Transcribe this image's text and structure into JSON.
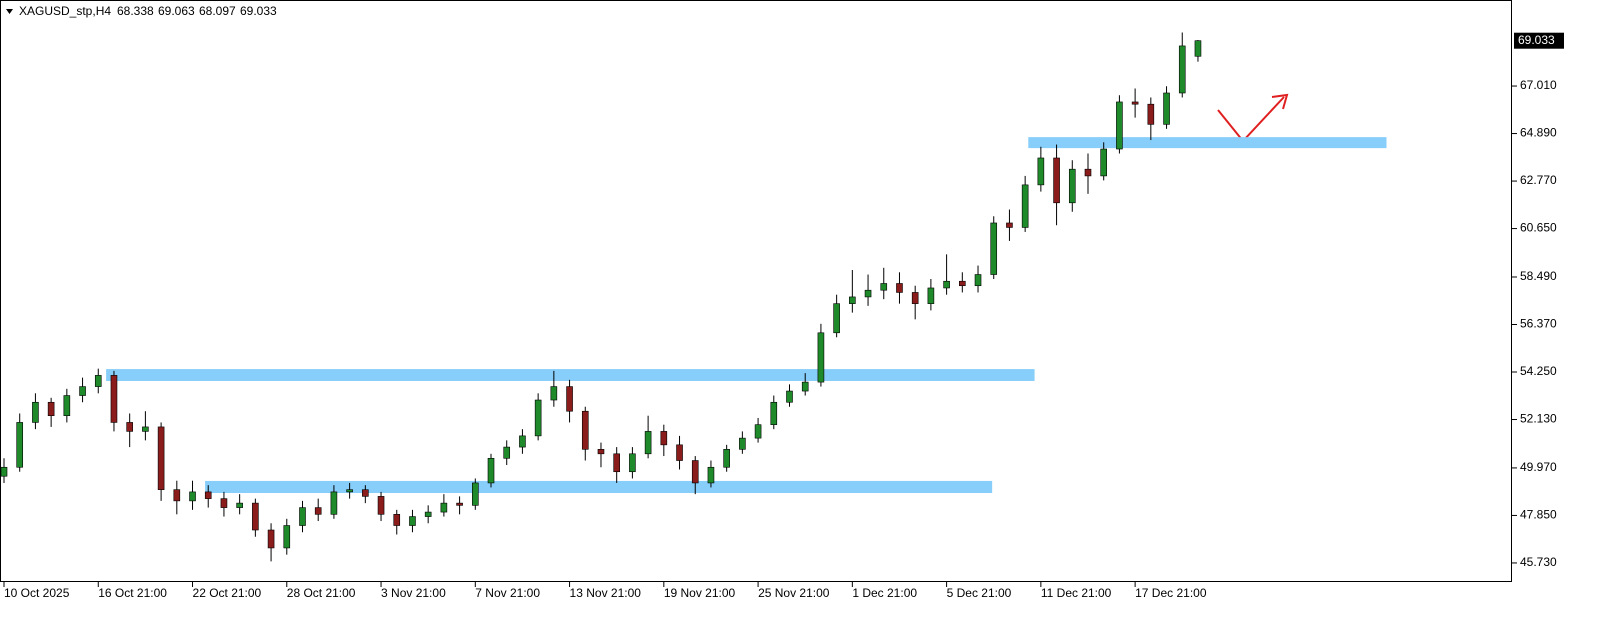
{
  "chart_data": {
    "type": "candlestick",
    "title": "XAGUSD_stp,H4",
    "categories": [
      "10 Oct 2025",
      null,
      null,
      null,
      null,
      null,
      "16 Oct 21:00",
      null,
      null,
      null,
      null,
      null,
      "22 Oct 21:00",
      null,
      null,
      null,
      null,
      null,
      "28 Oct 21:00",
      null,
      null,
      null,
      null,
      null,
      "3 Nov 21:00",
      null,
      null,
      null,
      null,
      null,
      "7 Nov 21:00",
      null,
      null,
      null,
      null,
      null,
      "13 Nov 21:00",
      null,
      null,
      null,
      null,
      null,
      "19 Nov 21:00",
      null,
      null,
      null,
      null,
      null,
      "25 Nov 21:00",
      null,
      null,
      null,
      null,
      null,
      "1 Dec 21:00",
      null,
      null,
      null,
      null,
      null,
      "5 Dec 21:00",
      null,
      null,
      null,
      null,
      null,
      "11 Dec 21:00",
      null,
      null,
      null,
      null,
      null,
      "17 Dec 21:00",
      null,
      null,
      null,
      null
    ],
    "open": [
      49.6,
      50.0,
      52.0,
      52.9,
      52.3,
      53.2,
      53.6,
      54.1,
      52.0,
      51.6,
      51.8,
      49.0,
      48.5,
      48.9,
      48.6,
      48.2,
      48.4,
      47.2,
      46.4,
      47.4,
      48.2,
      47.9,
      48.9,
      49.0,
      48.7,
      47.9,
      47.4,
      47.8,
      48.0,
      48.4,
      48.3,
      49.3,
      50.4,
      50.9,
      51.4,
      53.0,
      53.6,
      52.5,
      50.8,
      50.6,
      49.8,
      50.6,
      51.6,
      51.0,
      50.3,
      49.3,
      50.0,
      50.8,
      51.3,
      51.9,
      52.9,
      53.4,
      53.8,
      56.0,
      57.3,
      57.6,
      57.9,
      58.2,
      57.8,
      57.3,
      58.0,
      58.3,
      58.1,
      58.6,
      60.9,
      60.7,
      62.6,
      63.8,
      61.8,
      63.3,
      63.0,
      64.2,
      66.3,
      66.2,
      65.3,
      66.7,
      68.338
    ],
    "high": [
      50.4,
      52.4,
      53.3,
      53.1,
      53.5,
      54.0,
      54.4,
      54.3,
      52.4,
      52.5,
      52.0,
      49.4,
      49.4,
      49.2,
      48.9,
      48.8,
      48.6,
      47.5,
      47.7,
      48.5,
      48.6,
      49.2,
      49.3,
      49.2,
      48.9,
      48.1,
      48.1,
      48.3,
      48.8,
      48.7,
      49.5,
      50.6,
      51.2,
      51.7,
      53.3,
      54.3,
      53.9,
      52.7,
      51.1,
      50.9,
      50.9,
      52.3,
      51.9,
      51.4,
      50.5,
      50.3,
      51.0,
      51.6,
      52.2,
      53.2,
      53.7,
      54.2,
      56.4,
      57.7,
      58.8,
      58.6,
      58.9,
      58.7,
      58.1,
      58.4,
      59.5,
      58.7,
      59.0,
      61.2,
      61.5,
      63.0,
      64.3,
      64.4,
      63.7,
      64.0,
      64.5,
      66.6,
      66.9,
      66.5,
      67.0,
      69.4,
      69.063
    ],
    "low": [
      49.3,
      49.8,
      51.7,
      51.8,
      52.0,
      52.9,
      53.3,
      51.6,
      50.9,
      51.2,
      48.5,
      47.9,
      48.1,
      48.2,
      47.8,
      47.9,
      46.9,
      45.8,
      46.1,
      47.1,
      47.6,
      47.7,
      48.6,
      48.4,
      47.6,
      47.0,
      47.1,
      47.5,
      47.8,
      47.9,
      48.1,
      49.1,
      50.1,
      50.6,
      51.2,
      52.7,
      52.0,
      50.3,
      50.0,
      49.3,
      49.5,
      50.4,
      50.5,
      49.9,
      48.8,
      49.1,
      49.8,
      50.6,
      51.1,
      51.7,
      52.7,
      53.2,
      53.6,
      55.8,
      56.9,
      57.2,
      57.5,
      57.3,
      56.6,
      57.0,
      57.7,
      57.8,
      57.8,
      58.4,
      60.1,
      60.5,
      62.3,
      60.8,
      61.4,
      62.2,
      62.8,
      64.0,
      65.6,
      64.6,
      65.1,
      66.5,
      68.097
    ],
    "close": [
      50.0,
      52.0,
      52.9,
      52.3,
      53.2,
      53.6,
      54.1,
      52.0,
      51.6,
      51.8,
      49.0,
      48.5,
      48.9,
      48.6,
      48.2,
      48.4,
      47.2,
      46.4,
      47.4,
      48.2,
      47.9,
      48.9,
      49.0,
      48.7,
      47.9,
      47.4,
      47.8,
      48.0,
      48.4,
      48.3,
      49.3,
      50.4,
      50.9,
      51.4,
      53.0,
      53.6,
      52.5,
      50.8,
      50.6,
      49.8,
      50.6,
      51.6,
      51.0,
      50.3,
      49.3,
      50.0,
      50.8,
      51.3,
      51.9,
      52.9,
      53.4,
      53.8,
      56.0,
      57.3,
      57.6,
      57.9,
      58.2,
      57.8,
      57.3,
      58.0,
      58.3,
      58.1,
      58.6,
      60.9,
      60.7,
      62.6,
      63.8,
      61.8,
      63.3,
      63.0,
      64.2,
      66.3,
      66.2,
      65.3,
      66.7,
      68.8,
      69.033
    ],
    "up_color": "#1f8a2a",
    "down_color": "#8b1c1c",
    "ylim": [
      44.88,
      70.76
    ],
    "yticks": [
      {
        "value": 45.73,
        "label": "45.730"
      },
      {
        "value": 47.85,
        "label": "47.850"
      },
      {
        "value": 49.97,
        "label": "49.970"
      },
      {
        "value": 52.13,
        "label": "52.130"
      },
      {
        "value": 54.25,
        "label": "54.250"
      },
      {
        "value": 56.37,
        "label": "56.370"
      },
      {
        "value": 58.49,
        "label": "58.490"
      },
      {
        "value": 60.65,
        "label": "60.650"
      },
      {
        "value": 62.77,
        "label": "62.770"
      },
      {
        "value": 64.89,
        "label": "64.890"
      },
      {
        "value": 67.01,
        "label": "67.010"
      }
    ],
    "zones": [
      {
        "start": 6.5,
        "end": 65.6,
        "low": 53.85,
        "high": 54.38,
        "color": "#87cefa"
      },
      {
        "start": 12.8,
        "end": 62.9,
        "low": 48.85,
        "high": 49.39,
        "color": "#87cefa"
      },
      {
        "start": 65.2,
        "end": 88.0,
        "low": 64.24,
        "high": 64.73,
        "color": "#87cefa"
      }
    ]
  }
}
